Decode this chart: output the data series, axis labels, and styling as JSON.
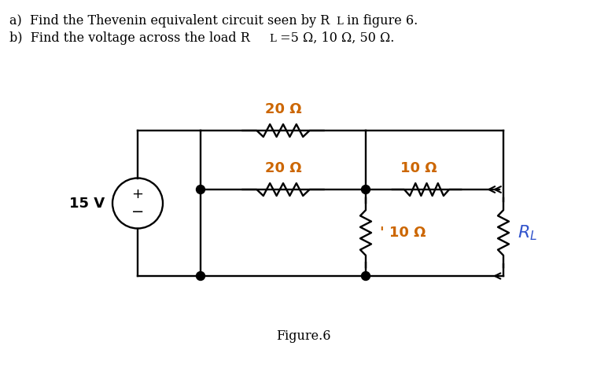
{
  "bg_color": "#ffffff",
  "line_color": "#000000",
  "rl_color": "#3355cc",
  "orange_color": "#cc6600",
  "voltage_source": "15 V",
  "r1_label": "20 Ω",
  "r2_label": "20 Ω",
  "r3_label": "10 Ω",
  "r4_label": "10 Ω",
  "fig_label": "Figure.6",
  "line_a1": "a)  Find the Thevenin equivalent circuit seen by R",
  "line_a_sub": "L",
  "line_a2": " in figure 6.",
  "line_b1": "b)  Find the voltage across the load R",
  "line_b_sub": "L",
  "line_b2": " =5 Ω, 10 Ω, 50 Ω."
}
